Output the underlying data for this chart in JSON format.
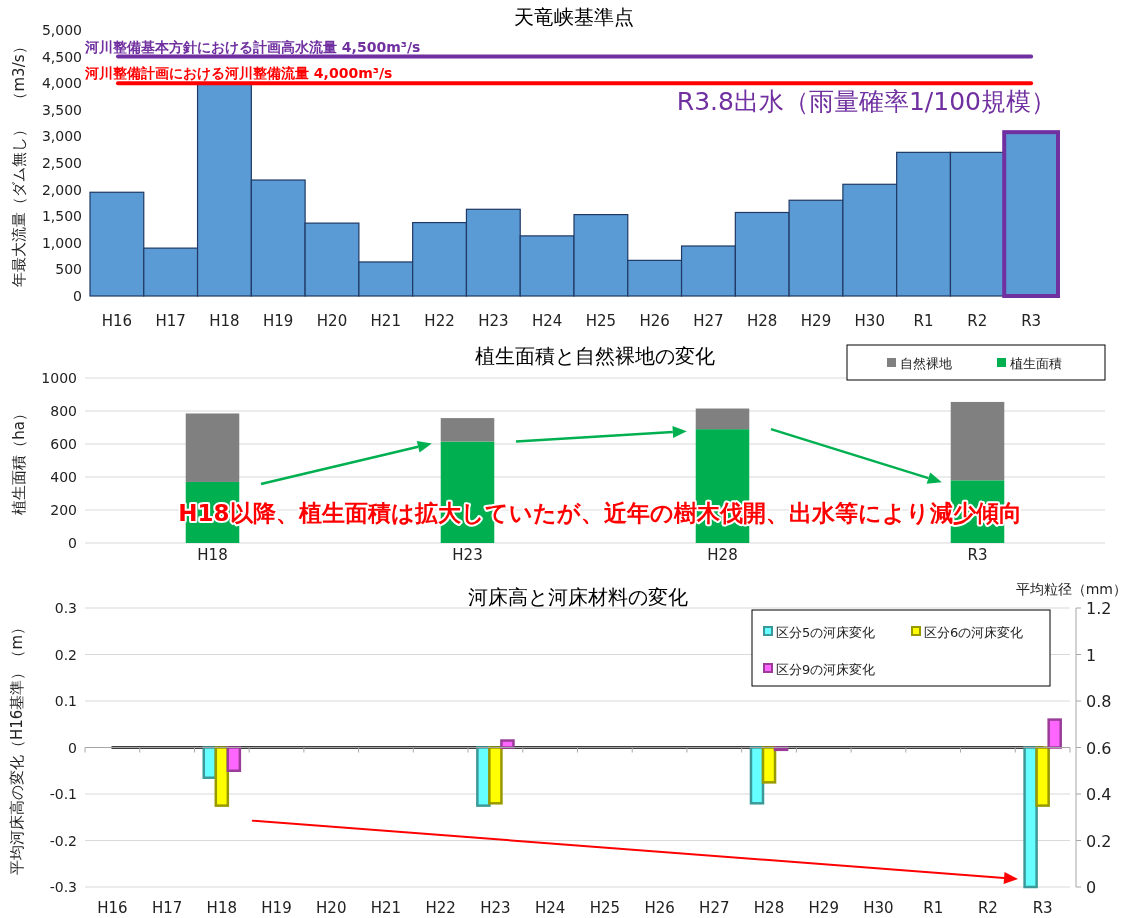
{
  "chart_data": [
    {
      "type": "bar",
      "title": "天竜峡基準点",
      "ylabel": "年最大流量（ダム無し）　（m3/s）",
      "categories": [
        "H16",
        "H17",
        "H18",
        "H19",
        "H20",
        "H21",
        "H22",
        "H23",
        "H24",
        "H25",
        "H26",
        "H27",
        "H28",
        "H29",
        "H30",
        "R1",
        "R2",
        "R3"
      ],
      "values": [
        1950,
        900,
        4000,
        2180,
        1370,
        640,
        1380,
        1630,
        1130,
        1530,
        670,
        940,
        1570,
        1800,
        2100,
        2700,
        2700,
        3080
      ],
      "color": "#5b9bd5",
      "ylim": [
        0,
        5000
      ],
      "yticks": [
        0,
        500,
        {
          "value": 1000,
          "label": "1,000"
        },
        {
          "value": 1500,
          "label": "1,500"
        },
        {
          "value": 2000,
          "label": "2,000"
        },
        {
          "value": 2500,
          "label": "2,500"
        },
        {
          "value": 3000,
          "label": "3,000"
        },
        {
          "value": 3500,
          "label": "3,500"
        },
        {
          "value": 4000,
          "label": "4,000"
        },
        {
          "value": 4500,
          "label": "4,500"
        },
        {
          "value": 5000,
          "label": "5,000"
        }
      ],
      "ref_lines": [
        {
          "axis": "y",
          "value": 4500,
          "label": "河川整備基本方針における計画高水流量 4,500m³/s",
          "color": "#7030a0"
        },
        {
          "axis": "y",
          "value": 4000,
          "label": "河川整備計画における河川整備流量 4,000m³/s",
          "color": "#ff0000"
        }
      ],
      "annotations": [
        {
          "text": "R3.8出水（雨量確率1/100規模）",
          "x": "R3",
          "y": 3080
        }
      ]
    },
    {
      "type": "bar",
      "stacked": true,
      "title": "植生面積と自然裸地の変化",
      "ylabel": "植生面積（ha）",
      "categories": [
        "H18",
        "H23",
        "H28",
        "R3"
      ],
      "series": [
        {
          "name": "植生面積",
          "color": "#00b050",
          "values": [
            370,
            615,
            690,
            380
          ]
        },
        {
          "name": "自然裸地",
          "color": "#808080",
          "values": [
            415,
            142,
            125,
            475
          ]
        }
      ],
      "ylim": [
        0,
        1000
      ],
      "yticks": [
        0,
        200,
        400,
        600,
        800,
        1000
      ],
      "grid": "y",
      "legend": "top right",
      "annotations": [
        "H18以降、植生面積は拡大していたが、近年の樹木伐開、出水等により減少傾向"
      ]
    },
    {
      "type": "bar",
      "title": "河床高と河床材料の変化",
      "ylabel": "平均河床高の変化（H16基準）（m）",
      "y2label": "平均粒径（mm）",
      "categories": [
        "H16",
        "H17",
        "H18",
        "H19",
        "H20",
        "H21",
        "H22",
        "H23",
        "H24",
        "H25",
        "H26",
        "H27",
        "H28",
        "H29",
        "H30",
        "R1",
        "R2",
        "R3"
      ],
      "series": [
        {
          "name": "区分5の河床変化",
          "color": "#66ffff",
          "values": [
            null,
            null,
            -0.065,
            null,
            null,
            null,
            null,
            -0.125,
            null,
            null,
            null,
            null,
            -0.12,
            null,
            null,
            null,
            null,
            -0.3
          ]
        },
        {
          "name": "区分6の河床変化",
          "color": "#ffff00",
          "values": [
            null,
            null,
            -0.125,
            null,
            null,
            null,
            null,
            -0.12,
            null,
            null,
            null,
            null,
            -0.075,
            null,
            null,
            null,
            null,
            -0.125
          ]
        },
        {
          "name": "区分9の河床変化",
          "color": "#ff66ff",
          "values": [
            null,
            null,
            -0.05,
            null,
            null,
            null,
            null,
            0.015,
            null,
            null,
            null,
            null,
            -0.005,
            null,
            null,
            null,
            null,
            0.06
          ]
        }
      ],
      "ylim": [
        -0.3,
        0.3
      ],
      "yticks": [
        -0.3,
        -0.2,
        -0.1,
        0,
        0.1,
        0.2,
        0.3
      ],
      "y2lim": [
        0,
        1.2
      ],
      "y2ticks": [
        0,
        0.2,
        0.4,
        0.6,
        0.8,
        1,
        1.2
      ],
      "grid": "y",
      "legend": "top right",
      "ref_lines": [
        {
          "axis": "y",
          "value": 0,
          "color": "#000000"
        }
      ]
    }
  ]
}
